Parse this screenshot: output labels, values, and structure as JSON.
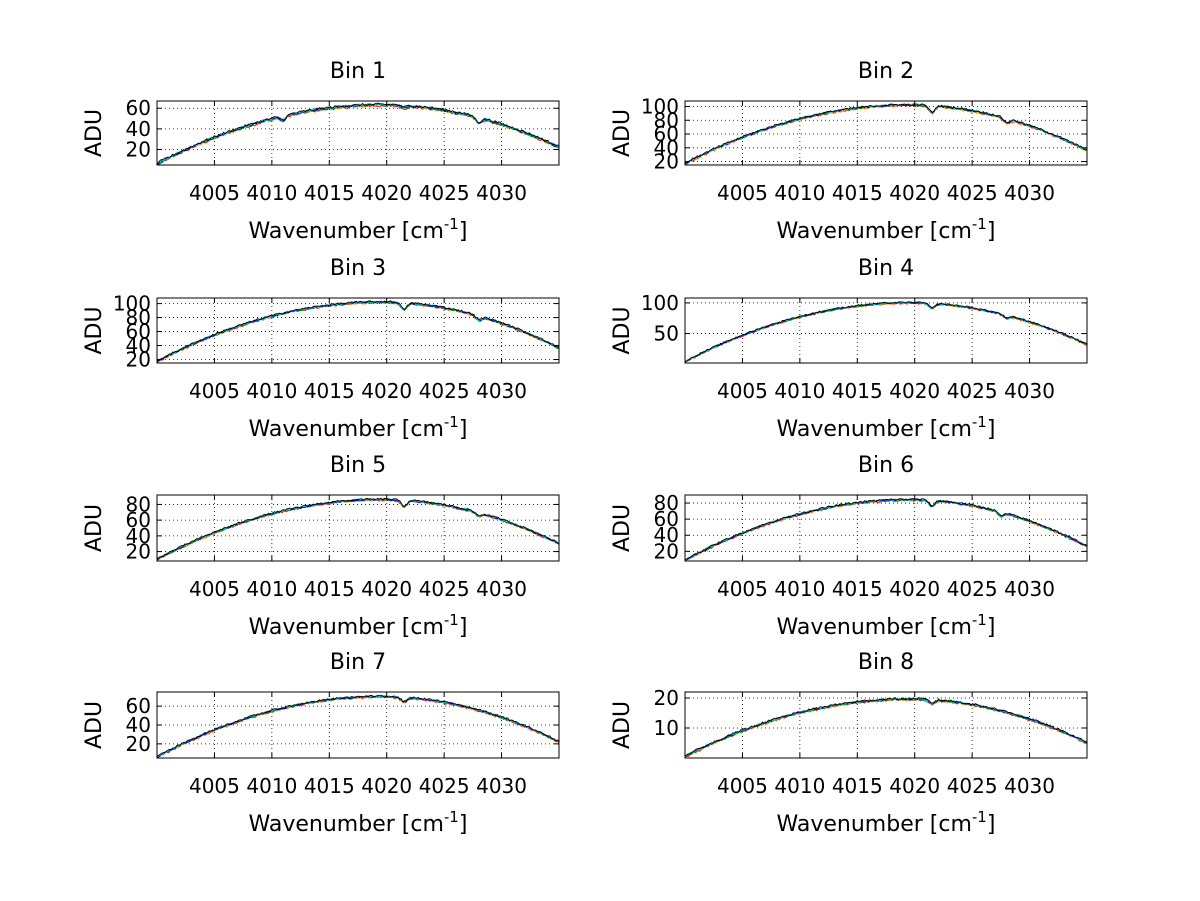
{
  "figure": {
    "xlabel_main": "Wavenumber [cm",
    "xlabel_sup": "-1",
    "xlabel_end": "]",
    "ylabel": "ADU"
  },
  "chart_data": [
    {
      "type": "line",
      "title": "Bin 1",
      "xlim": [
        4000,
        4035
      ],
      "ylim": [
        5,
        67
      ],
      "xticks": [
        4005,
        4010,
        4015,
        4020,
        4025,
        4030
      ],
      "xtick_labels": [
        "4005",
        "4010",
        "4015",
        "4020",
        "4025",
        "4030"
      ],
      "yticks": [
        20,
        40,
        60
      ],
      "ytick_labels": [
        "20",
        "40",
        "60"
      ],
      "grid": true,
      "peak": 63,
      "edge_start": 6,
      "edge_end": 22,
      "dips": [
        [
          4011,
          4
        ],
        [
          4028,
          5
        ],
        [
          4021.5,
          2
        ]
      ],
      "noise": 1.2,
      "series": [
        {
          "name": "red",
          "color": "#ff0000"
        },
        {
          "name": "orange",
          "color": "#ffa000"
        },
        {
          "name": "green",
          "color": "#00a000"
        },
        {
          "name": "blue",
          "color": "#0000ff"
        },
        {
          "name": "cyan",
          "color": "#00bfbf"
        },
        {
          "name": "black",
          "color": "#000000"
        }
      ]
    },
    {
      "type": "line",
      "title": "Bin 2",
      "xlim": [
        4000,
        4035
      ],
      "ylim": [
        15,
        108
      ],
      "xticks": [
        4005,
        4010,
        4015,
        4020,
        4025,
        4030
      ],
      "xtick_labels": [
        "4005",
        "4010",
        "4015",
        "4020",
        "4025",
        "4030"
      ],
      "yticks": [
        20,
        40,
        60,
        80,
        100
      ],
      "ytick_labels": [
        "20",
        "40",
        "60",
        "80",
        "100"
      ],
      "grid": true,
      "peak": 102,
      "edge_start": 17,
      "edge_end": 36,
      "dips": [
        [
          4021.5,
          10
        ],
        [
          4028,
          6
        ]
      ],
      "noise": 1.4,
      "series": [
        {
          "name": "red",
          "color": "#ff0000"
        },
        {
          "name": "orange",
          "color": "#ffa000"
        },
        {
          "name": "green",
          "color": "#00a000"
        },
        {
          "name": "blue",
          "color": "#0000ff"
        },
        {
          "name": "cyan",
          "color": "#00bfbf"
        },
        {
          "name": "black",
          "color": "#000000"
        }
      ]
    },
    {
      "type": "line",
      "title": "Bin 3",
      "xlim": [
        4000,
        4035
      ],
      "ylim": [
        15,
        108
      ],
      "xticks": [
        4005,
        4010,
        4015,
        4020,
        4025,
        4030
      ],
      "xtick_labels": [
        "4005",
        "4010",
        "4015",
        "4020",
        "4025",
        "4030"
      ],
      "yticks": [
        20,
        40,
        60,
        80,
        100
      ],
      "ytick_labels": [
        "20",
        "40",
        "60",
        "80",
        "100"
      ],
      "grid": true,
      "peak": 102,
      "edge_start": 17,
      "edge_end": 36,
      "dips": [
        [
          4021.5,
          10
        ],
        [
          4028,
          6
        ]
      ],
      "noise": 1.4,
      "series": [
        {
          "name": "red",
          "color": "#ff0000"
        },
        {
          "name": "orange",
          "color": "#ffa000"
        },
        {
          "name": "green",
          "color": "#00a000"
        },
        {
          "name": "blue",
          "color": "#0000ff"
        },
        {
          "name": "cyan",
          "color": "#00bfbf"
        },
        {
          "name": "black",
          "color": "#000000"
        }
      ]
    },
    {
      "type": "line",
      "title": "Bin 4",
      "xlim": [
        4000,
        4035
      ],
      "ylim": [
        2,
        108
      ],
      "xticks": [
        4005,
        4010,
        4015,
        4020,
        4025,
        4030
      ],
      "xtick_labels": [
        "4005",
        "4010",
        "4015",
        "4020",
        "4025",
        "4030"
      ],
      "yticks": [
        50,
        100
      ],
      "ytick_labels": [
        "50",
        "100"
      ],
      "grid": true,
      "peak": 100,
      "edge_start": 4,
      "edge_end": 32,
      "dips": [
        [
          4021.5,
          8
        ],
        [
          4028,
          5
        ]
      ],
      "noise": 1.3,
      "series": [
        {
          "name": "red",
          "color": "#ff0000"
        },
        {
          "name": "orange",
          "color": "#ffa000"
        },
        {
          "name": "green",
          "color": "#00a000"
        },
        {
          "name": "blue",
          "color": "#0000ff"
        },
        {
          "name": "cyan",
          "color": "#00bfbf"
        },
        {
          "name": "black",
          "color": "#000000"
        }
      ]
    },
    {
      "type": "line",
      "title": "Bin 5",
      "xlim": [
        4000,
        4035
      ],
      "ylim": [
        8,
        92
      ],
      "xticks": [
        4005,
        4010,
        4015,
        4020,
        4025,
        4030
      ],
      "xtick_labels": [
        "4005",
        "4010",
        "4015",
        "4020",
        "4025",
        "4030"
      ],
      "yticks": [
        20,
        40,
        60,
        80
      ],
      "ytick_labels": [
        "20",
        "40",
        "60",
        "80"
      ],
      "grid": true,
      "peak": 86,
      "edge_start": 10,
      "edge_end": 30,
      "dips": [
        [
          4021.5,
          8
        ],
        [
          4028,
          4
        ]
      ],
      "noise": 1.2,
      "series": [
        {
          "name": "red",
          "color": "#ff0000"
        },
        {
          "name": "orange",
          "color": "#ffa000"
        },
        {
          "name": "green",
          "color": "#00a000"
        },
        {
          "name": "blue",
          "color": "#0000ff"
        },
        {
          "name": "cyan",
          "color": "#00bfbf"
        },
        {
          "name": "black",
          "color": "#000000"
        }
      ]
    },
    {
      "type": "line",
      "title": "Bin 6",
      "xlim": [
        4000,
        4035
      ],
      "ylim": [
        8,
        90
      ],
      "xticks": [
        4005,
        4010,
        4015,
        4020,
        4025,
        4030
      ],
      "xtick_labels": [
        "4005",
        "4010",
        "4015",
        "4020",
        "4025",
        "4030"
      ],
      "yticks": [
        20,
        40,
        60,
        80
      ],
      "ytick_labels": [
        "20",
        "40",
        "60",
        "80"
      ],
      "grid": true,
      "peak": 84,
      "edge_start": 9,
      "edge_end": 26,
      "dips": [
        [
          4021.5,
          7
        ],
        [
          4027.5,
          5
        ]
      ],
      "noise": 1.2,
      "series": [
        {
          "name": "red",
          "color": "#ff0000"
        },
        {
          "name": "orange",
          "color": "#ffa000"
        },
        {
          "name": "green",
          "color": "#00a000"
        },
        {
          "name": "blue",
          "color": "#0000ff"
        },
        {
          "name": "cyan",
          "color": "#00bfbf"
        },
        {
          "name": "black",
          "color": "#000000"
        }
      ]
    },
    {
      "type": "line",
      "title": "Bin 7",
      "xlim": [
        4000,
        4035
      ],
      "ylim": [
        5,
        75
      ],
      "xticks": [
        4005,
        4010,
        4015,
        4020,
        4025,
        4030
      ],
      "xtick_labels": [
        "4005",
        "4010",
        "4015",
        "4020",
        "4025",
        "4030"
      ],
      "yticks": [
        20,
        40,
        60
      ],
      "ytick_labels": [
        "20",
        "40",
        "60"
      ],
      "grid": true,
      "peak": 70,
      "edge_start": 6,
      "edge_end": 22,
      "dips": [
        [
          4021.5,
          5
        ]
      ],
      "noise": 1.0,
      "series": [
        {
          "name": "red",
          "color": "#ff0000"
        },
        {
          "name": "orange",
          "color": "#ffa000"
        },
        {
          "name": "green",
          "color": "#00a000"
        },
        {
          "name": "blue",
          "color": "#0000ff"
        },
        {
          "name": "cyan",
          "color": "#00bfbf"
        },
        {
          "name": "black",
          "color": "#000000"
        }
      ]
    },
    {
      "type": "line",
      "title": "Bin 8",
      "xlim": [
        4000,
        4035
      ],
      "ylim": [
        0,
        22
      ],
      "xticks": [
        4005,
        4010,
        4015,
        4020,
        4025,
        4030
      ],
      "xtick_labels": [
        "4005",
        "4010",
        "4015",
        "4020",
        "4025",
        "4030"
      ],
      "yticks": [
        10,
        20
      ],
      "ytick_labels": [
        "10",
        "20"
      ],
      "grid": true,
      "peak": 19.6,
      "edge_start": 0.5,
      "edge_end": 5,
      "dips": [
        [
          4021.5,
          1.2
        ]
      ],
      "noise": 0.35,
      "series": [
        {
          "name": "red",
          "color": "#ff0000"
        },
        {
          "name": "orange",
          "color": "#ffa000"
        },
        {
          "name": "green",
          "color": "#00a000"
        },
        {
          "name": "blue",
          "color": "#0000ff"
        },
        {
          "name": "cyan",
          "color": "#00bfbf"
        },
        {
          "name": "black",
          "color": "#000000"
        }
      ]
    }
  ]
}
